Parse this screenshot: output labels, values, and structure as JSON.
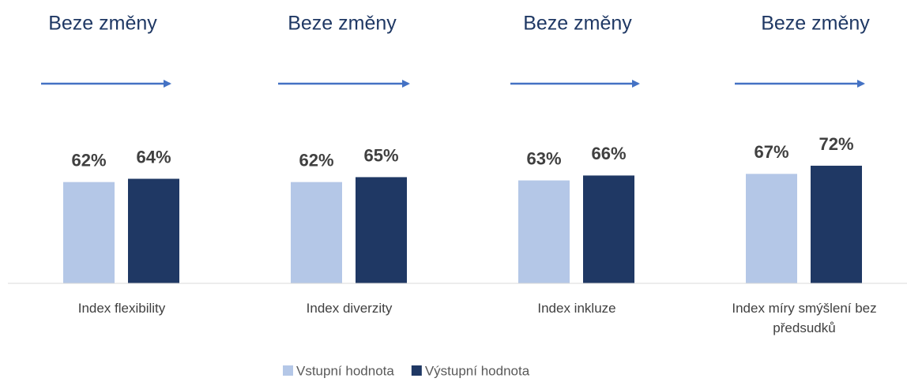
{
  "chart_data": {
    "type": "bar",
    "categories": [
      "Index flexibility",
      "Index diverzity",
      "Index inkluze",
      "Index míry smýšlení bez předsudků"
    ],
    "series": [
      {
        "name": "Vstupní hodnota",
        "color": "#b4c7e7",
        "values": [
          62,
          62,
          63,
          67
        ],
        "value_labels": [
          "62%",
          "62%",
          "63%",
          "67%"
        ]
      },
      {
        "name": "Výstupní hodnota",
        "color": "#1f3864",
        "values": [
          64,
          65,
          66,
          72
        ],
        "value_labels": [
          "64%",
          "65%",
          "66%",
          "72%"
        ]
      }
    ],
    "annotations": [
      "Beze změny",
      "Beze změny",
      "Beze změny",
      "Beze změny"
    ],
    "arrow_color": "#4472c4"
  }
}
